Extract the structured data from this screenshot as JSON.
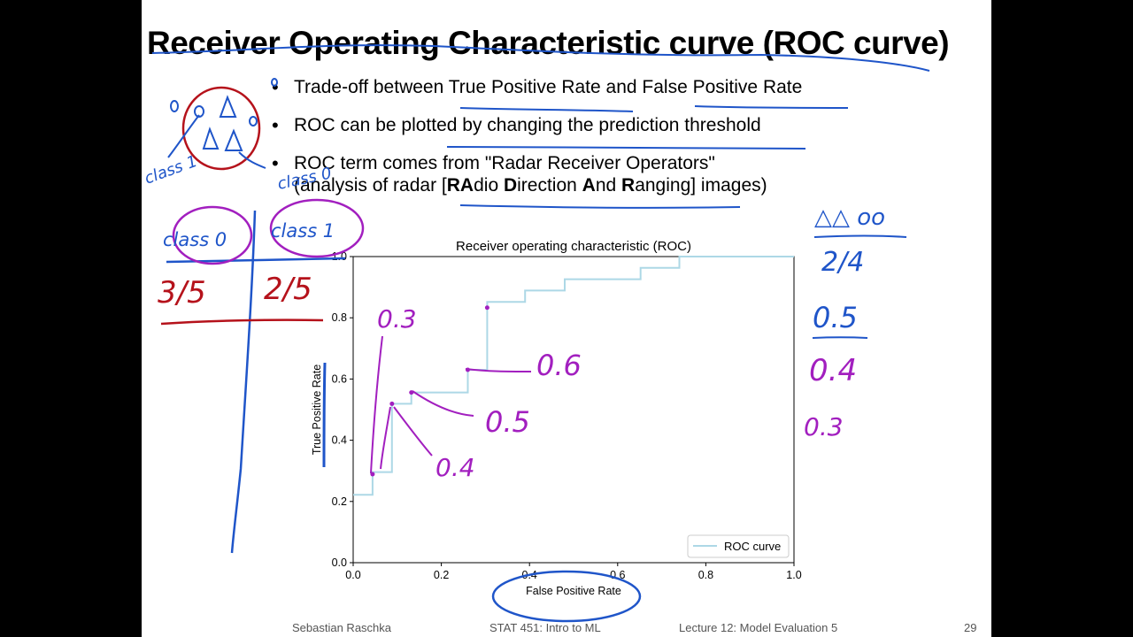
{
  "slide": {
    "title": "Receiver Operating Characteristic curve (ROC curve)",
    "bullets": [
      {
        "text": "Trade-off between True Positive Rate and False Positive Rate"
      },
      {
        "text": "ROC can be plotted by changing the prediction threshold"
      },
      {
        "line1": "ROC term comes from \"Radar Receiver Operators\"",
        "line2_pre": "(analysis of radar [",
        "line2_b1": "RA",
        "line2_t1": "dio ",
        "line2_b2": "D",
        "line2_t2": "irection ",
        "line2_b3": "A",
        "line2_t3": "nd ",
        "line2_b4": "R",
        "line2_t4": "anging] images)"
      }
    ],
    "footer": {
      "author": "Sebastian Raschka",
      "course": "STAT 451: Intro to ML",
      "lecture": "Lecture 12: Model Evaluation 5",
      "page": "29"
    }
  },
  "annotations": {
    "class_left": "class 1",
    "class_right": "class 0",
    "table_header_left": "class 0",
    "table_header_right": "class 1",
    "table_val_left": "3/5",
    "table_val_right": "2/5",
    "right_symbols": "△△ oo",
    "right_fraction": "2/4",
    "right_thresholds": [
      "0.5",
      "0.4",
      "0.3"
    ],
    "curve_thresholds": [
      "0.3",
      "0.6",
      "0.5",
      "0.4"
    ]
  },
  "colors": {
    "curve": "#add8e6",
    "pen_blue": "#1f55c9",
    "pen_purple": "#a21fbf",
    "pen_red": "#b5121b"
  },
  "chart_data": {
    "type": "line",
    "title": "Receiver operating characteristic (ROC)",
    "xlabel": "False Positive Rate",
    "ylabel": "True Positive Rate",
    "xlim": [
      0,
      1
    ],
    "ylim": [
      0,
      1
    ],
    "xticks": [
      "0.0",
      "0.2",
      "0.4",
      "0.6",
      "0.8",
      "1.0"
    ],
    "yticks": [
      "0.0",
      "0.2",
      "0.4",
      "0.6",
      "0.8",
      "1.0"
    ],
    "grid": false,
    "legend": "bottom-right",
    "series": [
      {
        "name": "ROC curve",
        "x": [
          0.0,
          0.044,
          0.044,
          0.088,
          0.088,
          0.132,
          0.132,
          0.26,
          0.26,
          0.304,
          0.304,
          0.39,
          0.39,
          0.48,
          0.48,
          0.652,
          0.652,
          0.74,
          0.74,
          1.0
        ],
        "y": [
          0.222,
          0.222,
          0.296,
          0.296,
          0.519,
          0.519,
          0.556,
          0.556,
          0.63,
          0.63,
          0.852,
          0.852,
          0.889,
          0.889,
          0.926,
          0.926,
          0.963,
          0.963,
          1.0,
          1.0
        ]
      }
    ]
  }
}
